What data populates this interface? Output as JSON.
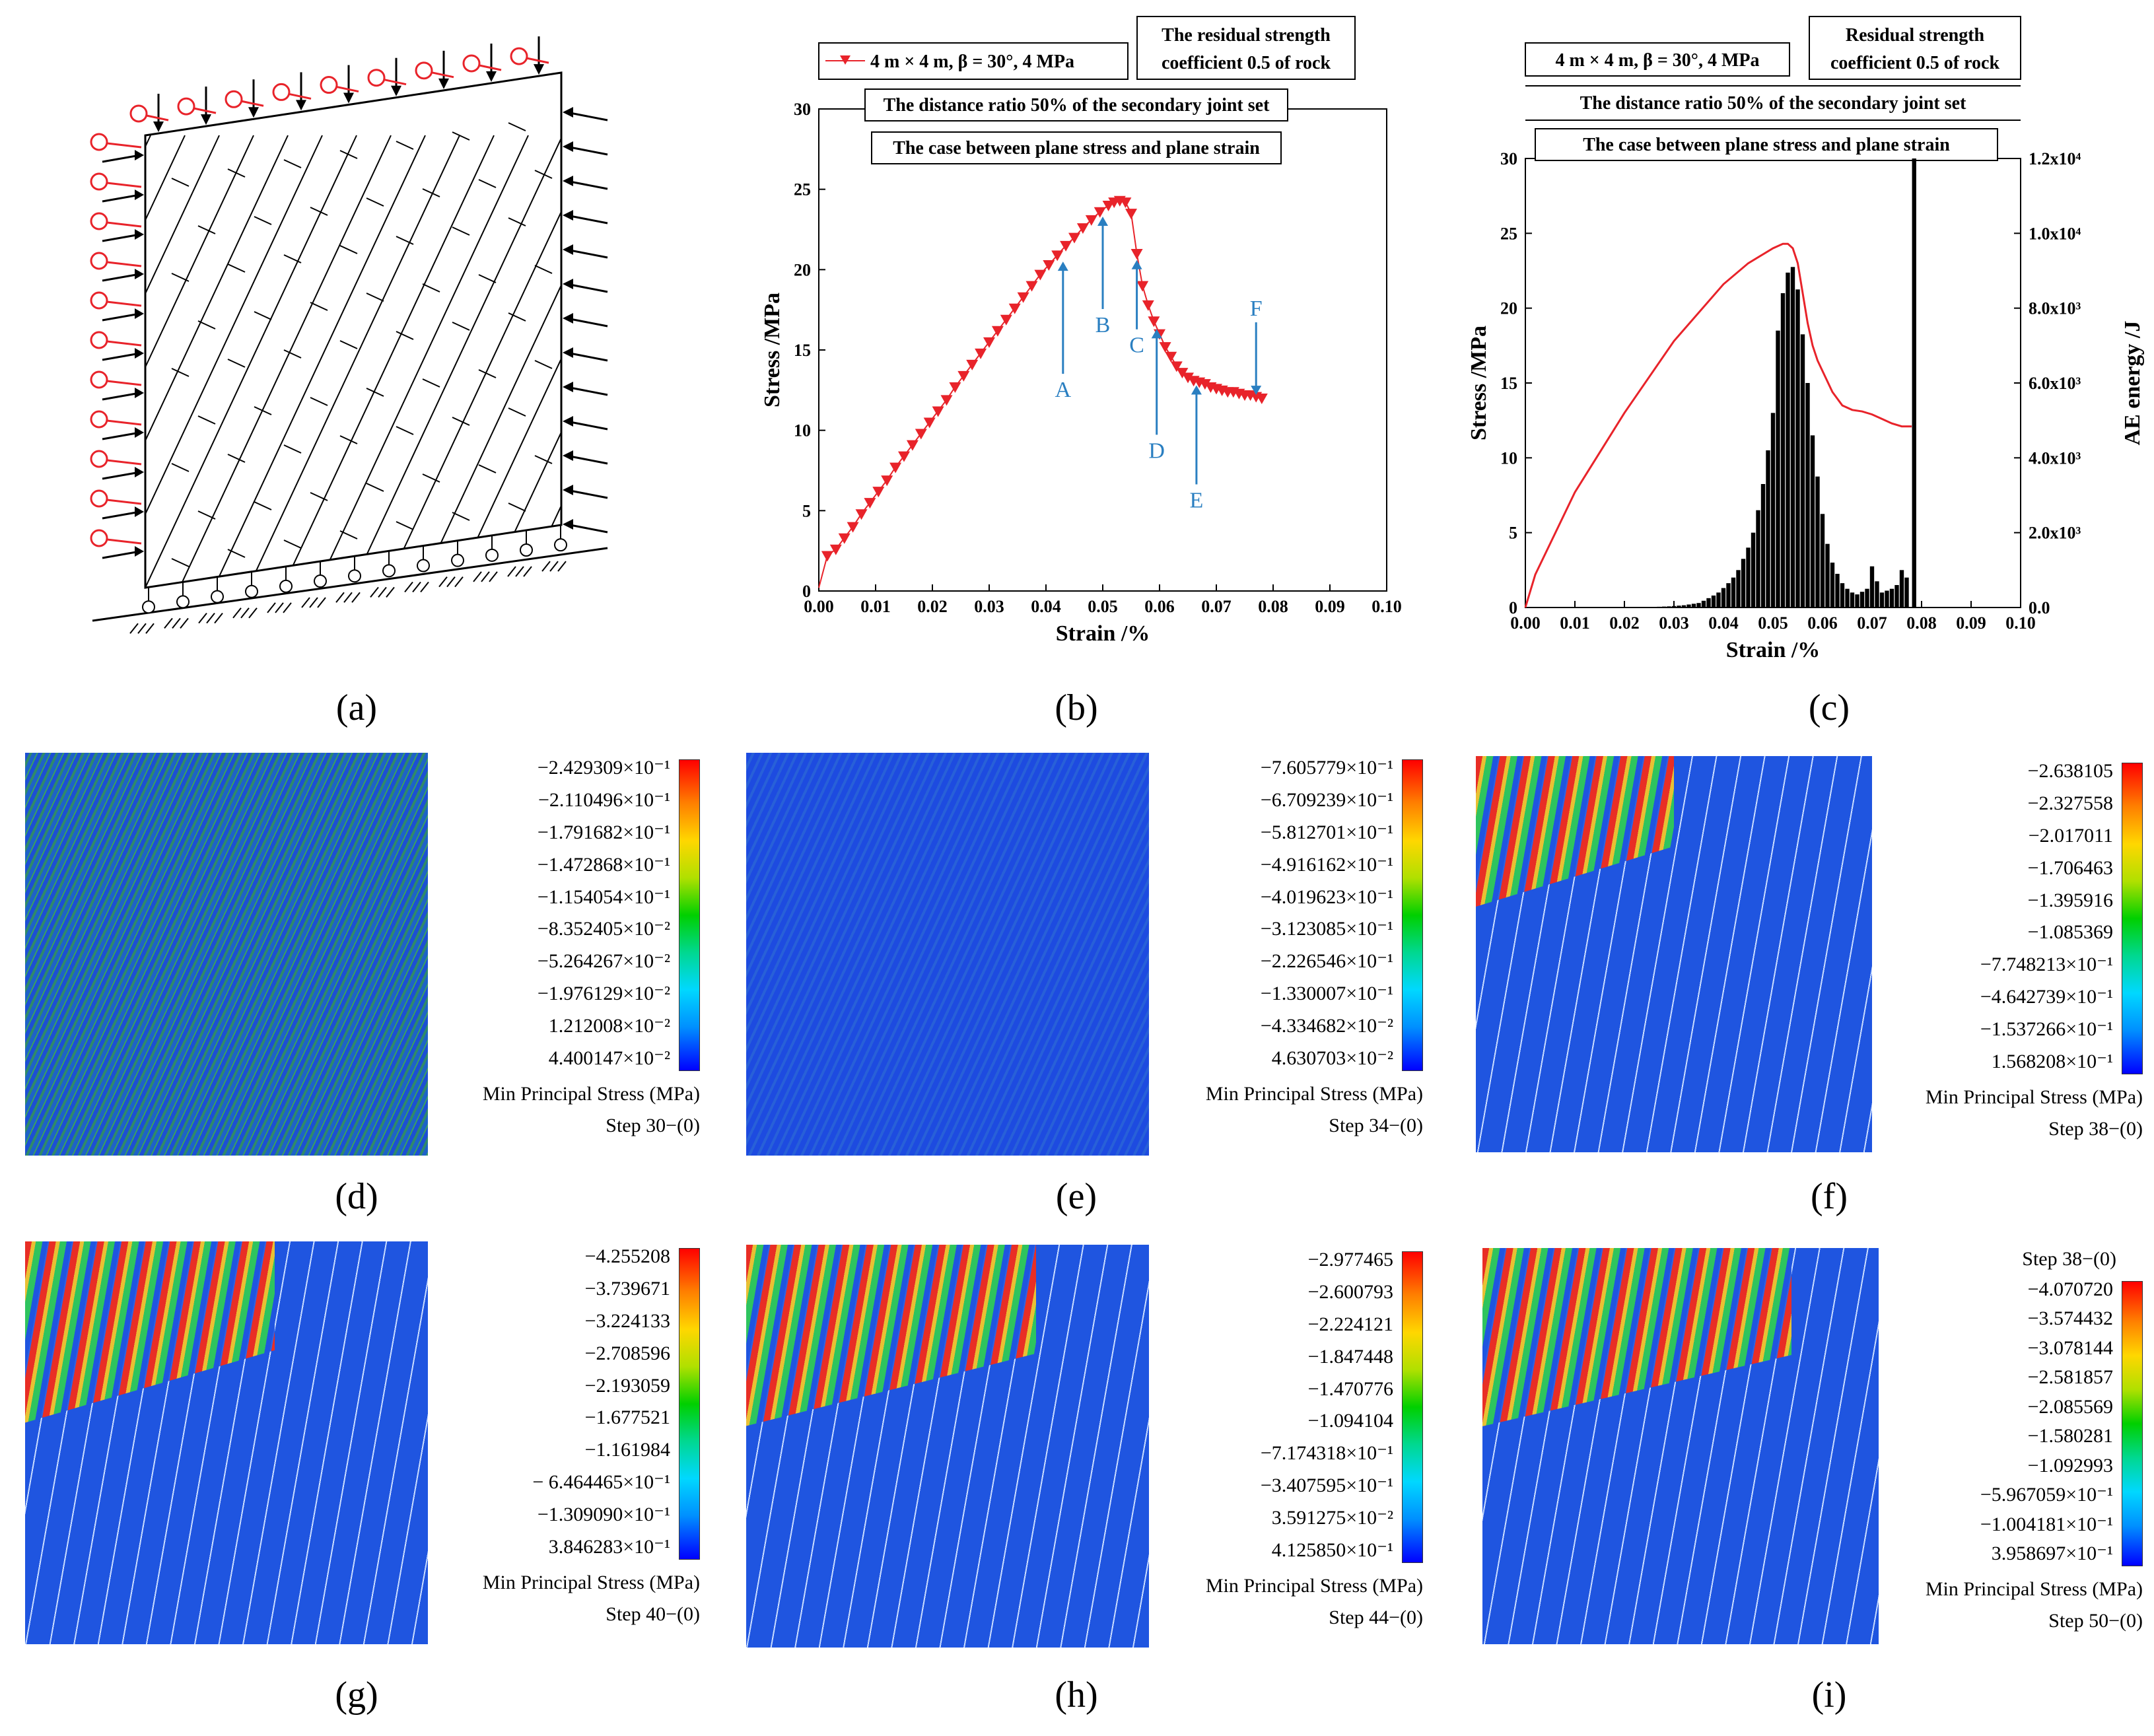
{
  "captions": {
    "a": "(a)",
    "b": "(b)",
    "c": "(c)",
    "d": "(d)",
    "e": "(e)",
    "f": "(f)",
    "g": "(g)",
    "h": "(h)",
    "i": "(i)"
  },
  "colors": {
    "curve": "#e8232a",
    "arrow": "#2a7fc1",
    "ae_bar": "#000000"
  },
  "chart_data": [
    {
      "id": "b",
      "type": "line",
      "legend": "4 m × 4 m,  β = 30°,  4 MPa",
      "notes": [
        "The residual strength coefficient 0.5 of rock",
        "The distance ratio  50%  of the secondary joint set",
        "The case between plane stress and plane strain"
      ],
      "xlabel": "Strain /%",
      "ylabel": "Stress /MPa",
      "xlim": [
        0,
        0.1
      ],
      "ylim": [
        0,
        30
      ],
      "xticks": [
        "0.00",
        "0.01",
        "0.02",
        "0.03",
        "0.04",
        "0.05",
        "0.06",
        "0.07",
        "0.08",
        "0.09",
        "0.10"
      ],
      "yticks": [
        "0",
        "5",
        "10",
        "15",
        "20",
        "25",
        "30"
      ],
      "series": [
        {
          "x": [
            0.0,
            0.0015,
            0.003,
            0.0045,
            0.006,
            0.0075,
            0.009,
            0.0105,
            0.012,
            0.0135,
            0.015,
            0.0165,
            0.018,
            0.0195,
            0.021,
            0.0225,
            0.024,
            0.0255,
            0.027,
            0.0285,
            0.03,
            0.0315,
            0.033,
            0.0345,
            0.036,
            0.0375,
            0.039,
            0.0405,
            0.042,
            0.0435,
            0.045,
            0.0465,
            0.048,
            0.0495,
            0.051,
            0.052,
            0.053,
            0.054,
            0.055,
            0.056,
            0.057,
            0.058,
            0.059,
            0.06,
            0.061,
            0.062,
            0.063,
            0.064,
            0.065,
            0.066,
            0.067,
            0.068,
            0.069,
            0.07,
            0.071,
            0.072,
            0.073,
            0.074,
            0.075,
            0.076,
            0.077,
            0.078
          ],
          "y": [
            0.2,
            2.2,
            2.6,
            3.3,
            4.0,
            4.8,
            5.5,
            6.2,
            6.9,
            7.7,
            8.4,
            9.1,
            9.8,
            10.5,
            11.2,
            11.9,
            12.7,
            13.4,
            14.1,
            14.8,
            15.5,
            16.2,
            16.9,
            17.6,
            18.3,
            19.0,
            19.7,
            20.3,
            20.9,
            21.5,
            22.0,
            22.6,
            23.1,
            23.6,
            24.0,
            24.2,
            24.3,
            24.2,
            23.5,
            21.0,
            19.0,
            17.8,
            16.8,
            16.0,
            15.2,
            14.6,
            14.0,
            13.6,
            13.3,
            13.1,
            13.0,
            12.9,
            12.7,
            12.6,
            12.5,
            12.4,
            12.4,
            12.3,
            12.2,
            12.2,
            12.1,
            12.0
          ]
        }
      ],
      "markers": [
        {
          "label": "A",
          "x": 0.043,
          "y": 20.5
        },
        {
          "label": "B",
          "x": 0.05,
          "y": 23.3
        },
        {
          "label": "C",
          "x": 0.056,
          "y": 20.6
        },
        {
          "label": "D",
          "x": 0.0595,
          "y": 16.3
        },
        {
          "label": "E",
          "x": 0.0665,
          "y": 12.8
        },
        {
          "label": "F",
          "x": 0.077,
          "y": 12.2
        }
      ]
    },
    {
      "id": "c",
      "type": "bar+line",
      "legend": "4 m × 4 m,  β = 30°,  4 MPa",
      "notes": [
        "Residual strength coefficient 0.5 of rock",
        "The distance ratio  50%  of the secondary joint set",
        "The case between plane stress and plane strain"
      ],
      "xlabel": "Strain /%",
      "ylabel": "Stress /MPa",
      "y2label": "AE energy /J",
      "xlim": [
        0,
        0.1
      ],
      "ylim": [
        0,
        30
      ],
      "y2lim": [
        0,
        12000
      ],
      "xticks": [
        "0.00",
        "0.01",
        "0.02",
        "0.03",
        "0.04",
        "0.05",
        "0.06",
        "0.07",
        "0.08",
        "0.09",
        "0.10"
      ],
      "yticks": [
        "0",
        "5",
        "10",
        "15",
        "20",
        "25",
        "30"
      ],
      "y2ticks": [
        "0.0",
        "2.0x10³",
        "4.0x10³",
        "6.0x10³",
        "8.0x10³",
        "1.0x10⁴",
        "1.2x10⁴"
      ],
      "stress": {
        "x": [
          0.0,
          0.002,
          0.01,
          0.02,
          0.03,
          0.04,
          0.045,
          0.05,
          0.052,
          0.053,
          0.054,
          0.055,
          0.056,
          0.057,
          0.058,
          0.059,
          0.06,
          0.062,
          0.064,
          0.066,
          0.068,
          0.07,
          0.072,
          0.074,
          0.076,
          0.078
        ],
        "y": [
          0.0,
          2.2,
          7.7,
          13.0,
          17.8,
          21.6,
          23.0,
          24.0,
          24.3,
          24.3,
          24.0,
          23.0,
          21.0,
          19.0,
          17.5,
          16.5,
          15.8,
          14.4,
          13.5,
          13.2,
          13.1,
          12.9,
          12.6,
          12.3,
          12.1,
          12.1
        ]
      },
      "ae_energy": {
        "x": [
          0.025,
          0.026,
          0.027,
          0.028,
          0.029,
          0.03,
          0.031,
          0.032,
          0.033,
          0.034,
          0.035,
          0.036,
          0.037,
          0.038,
          0.039,
          0.04,
          0.041,
          0.042,
          0.043,
          0.044,
          0.045,
          0.046,
          0.047,
          0.048,
          0.049,
          0.05,
          0.051,
          0.052,
          0.053,
          0.054,
          0.055,
          0.056,
          0.057,
          0.058,
          0.059,
          0.06,
          0.061,
          0.062,
          0.063,
          0.064,
          0.065,
          0.066,
          0.067,
          0.068,
          0.069,
          0.07,
          0.071,
          0.072,
          0.073,
          0.074,
          0.075,
          0.076,
          0.077,
          0.0785
        ],
        "y": [
          10,
          15,
          20,
          25,
          30,
          40,
          50,
          60,
          80,
          100,
          120,
          180,
          250,
          320,
          400,
          520,
          650,
          800,
          1000,
          1300,
          1600,
          2000,
          2600,
          3300,
          4200,
          5200,
          7400,
          8400,
          8950,
          9100,
          8500,
          7300,
          6000,
          4600,
          3500,
          2500,
          1700,
          1200,
          900,
          650,
          500,
          400,
          350,
          420,
          500,
          1100,
          700,
          400,
          450,
          500,
          600,
          1000,
          800,
          12000
        ]
      }
    }
  ],
  "maps": [
    {
      "id": "d",
      "title": "Min Principal Stress (MPa)",
      "step": "Step 30−(0)",
      "values": [
        "−2.429309×10⁻¹",
        "−2.110496×10⁻¹",
        "−1.791682×10⁻¹",
        "−1.472868×10⁻¹",
        "−1.154054×10⁻¹",
        "−8.352405×10⁻²",
        "−5.264267×10⁻²",
        "−1.976129×10⁻²",
        "1.212008×10⁻²",
        "4.400147×10⁻²"
      ]
    },
    {
      "id": "e",
      "title": "Min Principal Stress (MPa)",
      "step": "Step 34−(0)",
      "values": [
        "−7.605779×10⁻¹",
        "−6.709239×10⁻¹",
        "−5.812701×10⁻¹",
        "−4.916162×10⁻¹",
        "−4.019623×10⁻¹",
        "−3.123085×10⁻¹",
        "−2.226546×10⁻¹",
        "−1.330007×10⁻¹",
        "−4.334682×10⁻²",
        "4.630703×10⁻²"
      ]
    },
    {
      "id": "f",
      "title": "Min Principal Stress (MPa)",
      "step": "Step 38−(0)",
      "values": [
        "−2.638105",
        "−2.327558",
        "−2.017011",
        "−1.706463",
        "−1.395916",
        "−1.085369",
        "−7.748213×10⁻¹",
        "−4.642739×10⁻¹",
        "−1.537266×10⁻¹",
        "1.568208×10⁻¹"
      ]
    },
    {
      "id": "g",
      "title": "Min Principal Stress (MPa)",
      "step": "Step 40−(0)",
      "values": [
        "−4.255208",
        "−3.739671",
        "−3.224133",
        "−2.708596",
        "−2.193059",
        "−1.677521",
        "−1.161984",
        "− 6.464465×10⁻¹",
        "−1.309090×10⁻¹",
        "3.846283×10⁻¹"
      ]
    },
    {
      "id": "h",
      "title": "Min Principal Stress (MPa)",
      "step": "Step 44−(0)",
      "values": [
        "−2.977465",
        "−2.600793",
        "−2.224121",
        "−1.847448",
        "−1.470776",
        "−1.094104",
        "−7.174318×10⁻¹",
        "−3.407595×10⁻¹",
        "3.591275×10⁻²",
        "4.125850×10⁻¹"
      ]
    },
    {
      "id": "i",
      "title": "Min Principal Stress (MPa)",
      "step": "Step 50−(0)",
      "step_top": "Step 38−(0)",
      "values": [
        "−4.070720",
        "−3.574432",
        "−3.078144",
        "−2.581857",
        "−2.085569",
        "−1.580281",
        "−1.092993",
        "−5.967059×10⁻¹",
        "−1.004181×10⁻¹",
        "3.958697×10⁻¹"
      ]
    }
  ]
}
